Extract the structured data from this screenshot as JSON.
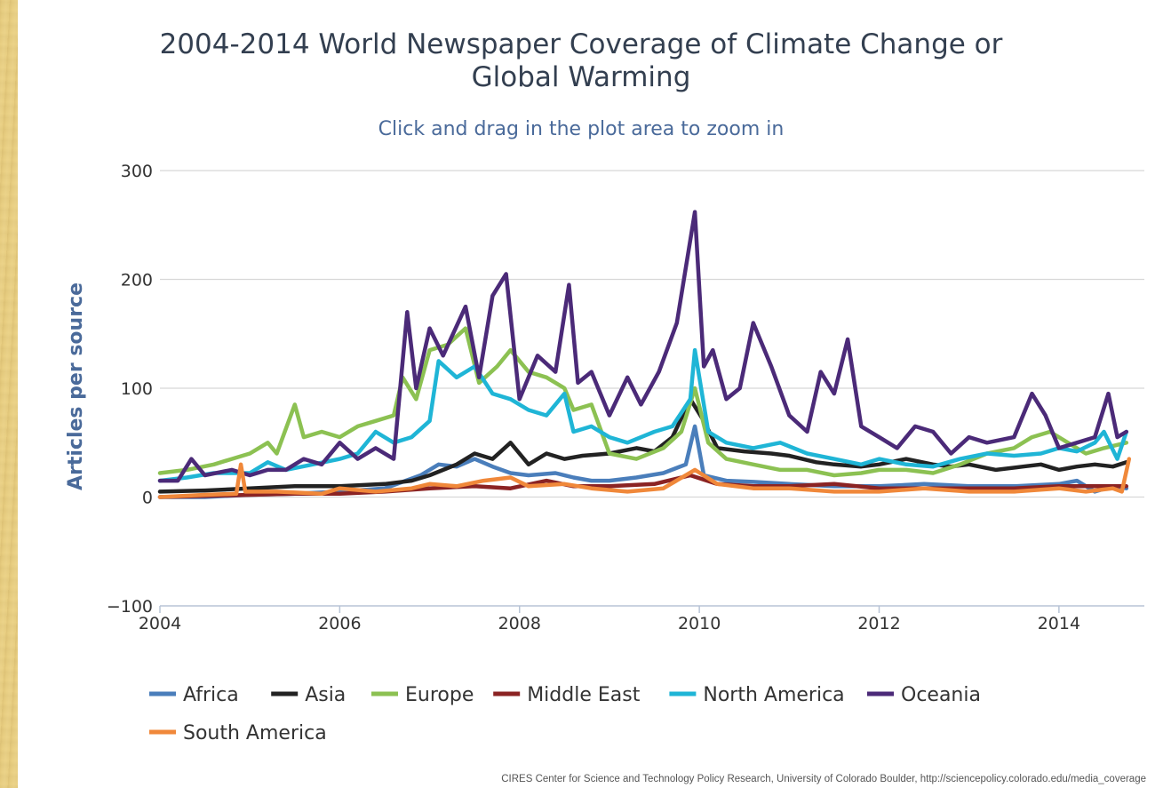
{
  "chart_data": {
    "type": "line",
    "title": "2004-2014 World Newspaper Coverage of Climate Change or Global Warming",
    "title_lines": [
      "2004-2014 World Newspaper Coverage of Climate Change or",
      "Global Warming"
    ],
    "subtitle": "Click and drag in the plot area to zoom in",
    "xlabel": "",
    "ylabel": "Articles per source",
    "xlim": [
      2004.0,
      2014.95
    ],
    "ylim": [
      -100,
      300
    ],
    "x_ticks": [
      2004,
      2006,
      2008,
      2010,
      2012,
      2014
    ],
    "y_ticks": [
      -100,
      0,
      100,
      200,
      300
    ],
    "grid": true,
    "legend_position": "bottom",
    "credits": "CIRES Center for Science and Technology Policy Research, University of Colorado Boulder, http://sciencepolicy.colorado.edu/media_coverage",
    "series": [
      {
        "name": "Africa",
        "color": "#4a7ebb",
        "points": [
          [
            2004.0,
            0
          ],
          [
            2004.5,
            0
          ],
          [
            2005.0,
            2
          ],
          [
            2005.5,
            3
          ],
          [
            2006.0,
            5
          ],
          [
            2006.5,
            8
          ],
          [
            2006.9,
            20
          ],
          [
            2007.1,
            30
          ],
          [
            2007.3,
            28
          ],
          [
            2007.5,
            35
          ],
          [
            2007.7,
            28
          ],
          [
            2007.9,
            22
          ],
          [
            2008.1,
            20
          ],
          [
            2008.4,
            22
          ],
          [
            2008.6,
            18
          ],
          [
            2008.8,
            15
          ],
          [
            2009.0,
            15
          ],
          [
            2009.3,
            18
          ],
          [
            2009.6,
            22
          ],
          [
            2009.85,
            30
          ],
          [
            2009.95,
            65
          ],
          [
            2010.05,
            20
          ],
          [
            2010.3,
            15
          ],
          [
            2010.6,
            14
          ],
          [
            2011.0,
            12
          ],
          [
            2011.5,
            10
          ],
          [
            2012.0,
            10
          ],
          [
            2012.5,
            12
          ],
          [
            2013.0,
            10
          ],
          [
            2013.5,
            10
          ],
          [
            2014.0,
            12
          ],
          [
            2014.2,
            15
          ],
          [
            2014.4,
            5
          ],
          [
            2014.6,
            10
          ],
          [
            2014.75,
            8
          ]
        ]
      },
      {
        "name": "Asia",
        "color": "#222222",
        "points": [
          [
            2004.0,
            5
          ],
          [
            2004.5,
            6
          ],
          [
            2005.0,
            8
          ],
          [
            2005.5,
            10
          ],
          [
            2006.0,
            10
          ],
          [
            2006.5,
            12
          ],
          [
            2006.8,
            15
          ],
          [
            2007.0,
            20
          ],
          [
            2007.3,
            30
          ],
          [
            2007.5,
            40
          ],
          [
            2007.7,
            35
          ],
          [
            2007.9,
            50
          ],
          [
            2008.1,
            30
          ],
          [
            2008.3,
            40
          ],
          [
            2008.5,
            35
          ],
          [
            2008.7,
            38
          ],
          [
            2009.0,
            40
          ],
          [
            2009.3,
            45
          ],
          [
            2009.5,
            42
          ],
          [
            2009.7,
            55
          ],
          [
            2009.9,
            90
          ],
          [
            2010.05,
            70
          ],
          [
            2010.2,
            45
          ],
          [
            2010.5,
            42
          ],
          [
            2010.8,
            40
          ],
          [
            2011.0,
            38
          ],
          [
            2011.3,
            32
          ],
          [
            2011.5,
            30
          ],
          [
            2011.8,
            28
          ],
          [
            2012.0,
            30
          ],
          [
            2012.3,
            35
          ],
          [
            2012.6,
            30
          ],
          [
            2012.8,
            28
          ],
          [
            2013.0,
            30
          ],
          [
            2013.3,
            25
          ],
          [
            2013.6,
            28
          ],
          [
            2013.8,
            30
          ],
          [
            2014.0,
            25
          ],
          [
            2014.2,
            28
          ],
          [
            2014.4,
            30
          ],
          [
            2014.6,
            28
          ],
          [
            2014.75,
            32
          ]
        ]
      },
      {
        "name": "Europe",
        "color": "#8cc152",
        "points": [
          [
            2004.0,
            22
          ],
          [
            2004.3,
            25
          ],
          [
            2004.6,
            30
          ],
          [
            2004.8,
            35
          ],
          [
            2005.0,
            40
          ],
          [
            2005.2,
            50
          ],
          [
            2005.3,
            40
          ],
          [
            2005.5,
            85
          ],
          [
            2005.6,
            55
          ],
          [
            2005.8,
            60
          ],
          [
            2006.0,
            55
          ],
          [
            2006.2,
            65
          ],
          [
            2006.4,
            70
          ],
          [
            2006.6,
            75
          ],
          [
            2006.7,
            110
          ],
          [
            2006.85,
            90
          ],
          [
            2007.0,
            135
          ],
          [
            2007.2,
            140
          ],
          [
            2007.4,
            155
          ],
          [
            2007.55,
            105
          ],
          [
            2007.75,
            120
          ],
          [
            2007.9,
            135
          ],
          [
            2008.1,
            115
          ],
          [
            2008.3,
            110
          ],
          [
            2008.5,
            100
          ],
          [
            2008.6,
            80
          ],
          [
            2008.8,
            85
          ],
          [
            2009.0,
            40
          ],
          [
            2009.3,
            35
          ],
          [
            2009.6,
            45
          ],
          [
            2009.8,
            60
          ],
          [
            2009.95,
            100
          ],
          [
            2010.1,
            50
          ],
          [
            2010.3,
            35
          ],
          [
            2010.6,
            30
          ],
          [
            2010.9,
            25
          ],
          [
            2011.2,
            25
          ],
          [
            2011.5,
            20
          ],
          [
            2011.8,
            22
          ],
          [
            2012.0,
            25
          ],
          [
            2012.3,
            25
          ],
          [
            2012.6,
            22
          ],
          [
            2012.9,
            30
          ],
          [
            2013.2,
            40
          ],
          [
            2013.5,
            45
          ],
          [
            2013.7,
            55
          ],
          [
            2013.9,
            60
          ],
          [
            2014.1,
            50
          ],
          [
            2014.3,
            40
          ],
          [
            2014.5,
            45
          ],
          [
            2014.75,
            50
          ]
        ]
      },
      {
        "name": "Middle East",
        "color": "#8b2323",
        "points": [
          [
            2004.0,
            0
          ],
          [
            2004.5,
            1
          ],
          [
            2005.0,
            2
          ],
          [
            2005.5,
            3
          ],
          [
            2006.0,
            3
          ],
          [
            2006.5,
            5
          ],
          [
            2007.0,
            8
          ],
          [
            2007.5,
            10
          ],
          [
            2007.9,
            8
          ],
          [
            2008.3,
            15
          ],
          [
            2008.6,
            10
          ],
          [
            2009.0,
            10
          ],
          [
            2009.5,
            12
          ],
          [
            2009.9,
            20
          ],
          [
            2010.2,
            12
          ],
          [
            2010.6,
            10
          ],
          [
            2011.0,
            10
          ],
          [
            2011.5,
            12
          ],
          [
            2012.0,
            8
          ],
          [
            2012.5,
            8
          ],
          [
            2013.0,
            8
          ],
          [
            2013.5,
            8
          ],
          [
            2014.0,
            10
          ],
          [
            2014.4,
            10
          ],
          [
            2014.75,
            10
          ]
        ]
      },
      {
        "name": "North America",
        "color": "#1fb5d6",
        "points": [
          [
            2004.0,
            15
          ],
          [
            2004.3,
            18
          ],
          [
            2004.6,
            22
          ],
          [
            2005.0,
            22
          ],
          [
            2005.2,
            32
          ],
          [
            2005.4,
            25
          ],
          [
            2005.7,
            30
          ],
          [
            2006.0,
            35
          ],
          [
            2006.2,
            40
          ],
          [
            2006.4,
            60
          ],
          [
            2006.6,
            50
          ],
          [
            2006.8,
            55
          ],
          [
            2007.0,
            70
          ],
          [
            2007.1,
            125
          ],
          [
            2007.3,
            110
          ],
          [
            2007.5,
            120
          ],
          [
            2007.7,
            95
          ],
          [
            2007.9,
            90
          ],
          [
            2008.1,
            80
          ],
          [
            2008.3,
            75
          ],
          [
            2008.5,
            95
          ],
          [
            2008.6,
            60
          ],
          [
            2008.8,
            65
          ],
          [
            2009.0,
            55
          ],
          [
            2009.2,
            50
          ],
          [
            2009.5,
            60
          ],
          [
            2009.7,
            65
          ],
          [
            2009.9,
            90
          ],
          [
            2009.95,
            135
          ],
          [
            2010.1,
            60
          ],
          [
            2010.3,
            50
          ],
          [
            2010.6,
            45
          ],
          [
            2010.9,
            50
          ],
          [
            2011.2,
            40
          ],
          [
            2011.5,
            35
          ],
          [
            2011.8,
            30
          ],
          [
            2012.0,
            35
          ],
          [
            2012.3,
            30
          ],
          [
            2012.6,
            28
          ],
          [
            2012.9,
            35
          ],
          [
            2013.2,
            40
          ],
          [
            2013.5,
            38
          ],
          [
            2013.8,
            40
          ],
          [
            2014.0,
            45
          ],
          [
            2014.2,
            42
          ],
          [
            2014.4,
            50
          ],
          [
            2014.5,
            60
          ],
          [
            2014.65,
            35
          ],
          [
            2014.75,
            60
          ]
        ]
      },
      {
        "name": "Oceania",
        "color": "#4b2a78",
        "points": [
          [
            2004.0,
            15
          ],
          [
            2004.2,
            15
          ],
          [
            2004.35,
            35
          ],
          [
            2004.5,
            20
          ],
          [
            2004.8,
            25
          ],
          [
            2005.0,
            20
          ],
          [
            2005.2,
            25
          ],
          [
            2005.4,
            25
          ],
          [
            2005.6,
            35
          ],
          [
            2005.8,
            30
          ],
          [
            2006.0,
            50
          ],
          [
            2006.2,
            35
          ],
          [
            2006.4,
            45
          ],
          [
            2006.6,
            35
          ],
          [
            2006.75,
            170
          ],
          [
            2006.85,
            100
          ],
          [
            2007.0,
            155
          ],
          [
            2007.15,
            130
          ],
          [
            2007.4,
            175
          ],
          [
            2007.55,
            110
          ],
          [
            2007.7,
            185
          ],
          [
            2007.85,
            205
          ],
          [
            2008.0,
            90
          ],
          [
            2008.2,
            130
          ],
          [
            2008.4,
            115
          ],
          [
            2008.55,
            195
          ],
          [
            2008.65,
            105
          ],
          [
            2008.8,
            115
          ],
          [
            2009.0,
            75
          ],
          [
            2009.2,
            110
          ],
          [
            2009.35,
            85
          ],
          [
            2009.55,
            115
          ],
          [
            2009.75,
            160
          ],
          [
            2009.95,
            262
          ],
          [
            2010.05,
            120
          ],
          [
            2010.15,
            135
          ],
          [
            2010.3,
            90
          ],
          [
            2010.45,
            100
          ],
          [
            2010.6,
            160
          ],
          [
            2010.8,
            120
          ],
          [
            2011.0,
            75
          ],
          [
            2011.2,
            60
          ],
          [
            2011.35,
            115
          ],
          [
            2011.5,
            95
          ],
          [
            2011.65,
            145
          ],
          [
            2011.8,
            65
          ],
          [
            2012.0,
            55
          ],
          [
            2012.2,
            45
          ],
          [
            2012.4,
            65
          ],
          [
            2012.6,
            60
          ],
          [
            2012.8,
            40
          ],
          [
            2013.0,
            55
          ],
          [
            2013.2,
            50
          ],
          [
            2013.5,
            55
          ],
          [
            2013.7,
            95
          ],
          [
            2013.85,
            75
          ],
          [
            2014.0,
            45
          ],
          [
            2014.2,
            50
          ],
          [
            2014.4,
            55
          ],
          [
            2014.55,
            95
          ],
          [
            2014.65,
            55
          ],
          [
            2014.75,
            60
          ]
        ]
      },
      {
        "name": "South America",
        "color": "#f0883a",
        "points": [
          [
            2004.0,
            0
          ],
          [
            2004.5,
            2
          ],
          [
            2004.85,
            3
          ],
          [
            2004.9,
            30
          ],
          [
            2004.95,
            5
          ],
          [
            2005.3,
            5
          ],
          [
            2005.8,
            3
          ],
          [
            2006.0,
            8
          ],
          [
            2006.4,
            5
          ],
          [
            2006.8,
            8
          ],
          [
            2007.0,
            12
          ],
          [
            2007.3,
            10
          ],
          [
            2007.6,
            15
          ],
          [
            2007.9,
            18
          ],
          [
            2008.1,
            10
          ],
          [
            2008.5,
            12
          ],
          [
            2008.8,
            8
          ],
          [
            2009.2,
            5
          ],
          [
            2009.6,
            8
          ],
          [
            2009.95,
            25
          ],
          [
            2010.2,
            12
          ],
          [
            2010.6,
            8
          ],
          [
            2011.0,
            8
          ],
          [
            2011.5,
            5
          ],
          [
            2012.0,
            5
          ],
          [
            2012.5,
            8
          ],
          [
            2013.0,
            5
          ],
          [
            2013.5,
            5
          ],
          [
            2014.0,
            8
          ],
          [
            2014.3,
            5
          ],
          [
            2014.6,
            8
          ],
          [
            2014.7,
            5
          ],
          [
            2014.78,
            35
          ]
        ]
      }
    ]
  }
}
